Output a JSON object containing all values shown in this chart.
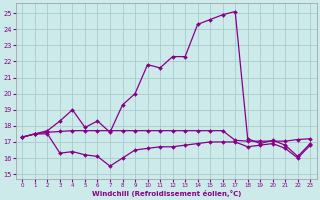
{
  "xlabel": "Windchill (Refroidissement éolien,°C)",
  "background_color": "#cceaea",
  "grid_color": "#aacccc",
  "line_color": "#880088",
  "xlim": [
    -0.5,
    23.5
  ],
  "ylim": [
    14.7,
    25.6
  ],
  "yticks": [
    15,
    16,
    17,
    18,
    19,
    20,
    21,
    22,
    23,
    24,
    25
  ],
  "xticks": [
    0,
    1,
    2,
    3,
    4,
    5,
    6,
    7,
    8,
    9,
    10,
    11,
    12,
    13,
    14,
    15,
    16,
    17,
    18,
    19,
    20,
    21,
    22,
    23
  ],
  "series_main_x": [
    0,
    1,
    2,
    3,
    4,
    5,
    6,
    7,
    8,
    9,
    10,
    11,
    12,
    13,
    14,
    15,
    16,
    17,
    18,
    19,
    20,
    21,
    22,
    23
  ],
  "series_main_y": [
    17.3,
    17.5,
    17.7,
    18.3,
    19.0,
    17.9,
    18.3,
    17.6,
    19.3,
    20.0,
    21.8,
    21.6,
    22.3,
    22.3,
    24.3,
    24.6,
    24.9,
    25.1,
    17.2,
    16.9,
    17.1,
    16.8,
    16.1,
    16.9
  ],
  "series_flat_x": [
    0,
    1,
    2,
    3,
    4,
    5,
    6,
    7,
    8,
    9,
    10,
    11,
    12,
    13,
    14,
    15,
    16,
    17,
    18,
    19,
    20,
    21,
    22,
    23
  ],
  "series_flat_y": [
    17.3,
    17.5,
    17.6,
    17.65,
    17.7,
    17.7,
    17.7,
    17.7,
    17.7,
    17.7,
    17.7,
    17.7,
    17.7,
    17.7,
    17.7,
    17.7,
    17.7,
    17.1,
    17.05,
    17.05,
    17.05,
    17.05,
    17.15,
    17.2
  ],
  "series_low_x": [
    0,
    1,
    2,
    3,
    4,
    5,
    6,
    7,
    8,
    9,
    10,
    11,
    12,
    13,
    14,
    15,
    16,
    17,
    18,
    19,
    20,
    21,
    22,
    23
  ],
  "series_low_y": [
    17.3,
    17.5,
    17.5,
    16.3,
    16.4,
    16.2,
    16.1,
    15.5,
    16.0,
    16.5,
    16.6,
    16.7,
    16.7,
    16.8,
    16.9,
    17.0,
    17.0,
    17.0,
    16.7,
    16.8,
    16.9,
    16.6,
    16.0,
    16.8
  ]
}
